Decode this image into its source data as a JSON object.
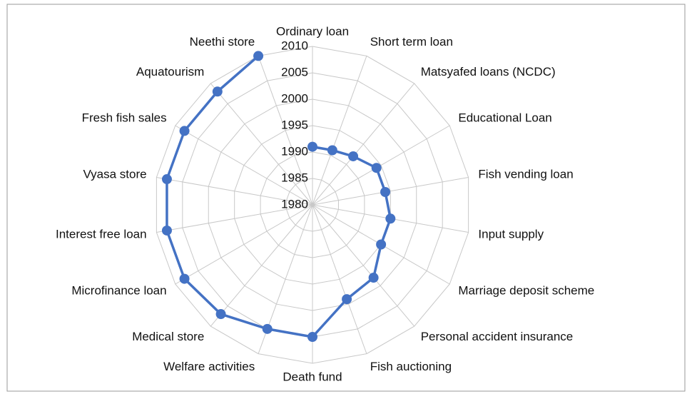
{
  "chart_data": {
    "type": "radar",
    "categories": [
      "Ordinary loan",
      "Short term loan",
      "Matsyafed loans (NCDC)",
      "Educational Loan",
      "Fish vending loan",
      "Input supply",
      "Marriage deposit scheme",
      "Personal accident insurance",
      "Fish auctioning",
      "Death fund",
      "Welfare activities",
      "Medical store",
      "Microfinance loan",
      "Interest free loan",
      "Vyasa store",
      "Fresh fish sales",
      "Aquatourism",
      "Neethi store"
    ],
    "values": [
      1991,
      1991,
      1992,
      1994,
      1994,
      1995,
      1995,
      1998,
      1999,
      2005,
      2005,
      2007,
      2008,
      2008,
      2008,
      2008,
      2008,
      2010
    ],
    "color": "#4472c4",
    "ylim": [
      1980,
      2010
    ],
    "yticks": [
      1980,
      1985,
      1990,
      1995,
      2000,
      2005,
      2010
    ],
    "grid": true
  }
}
